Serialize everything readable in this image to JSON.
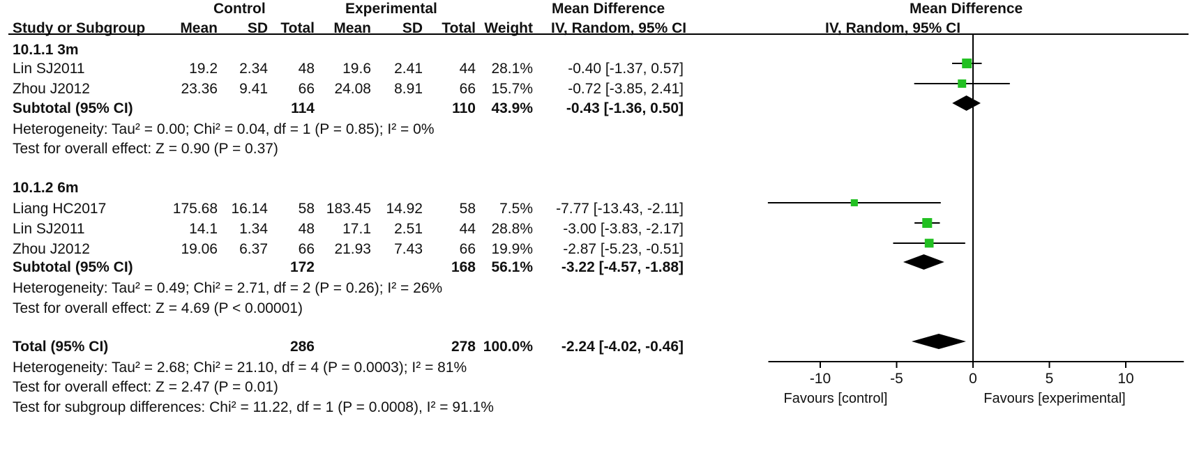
{
  "header": {
    "control": "Control",
    "experimental": "Experimental",
    "md_top": "Mean Difference",
    "plot_top": "Mean Difference",
    "study": "Study or Subgroup",
    "c_mean": "Mean",
    "c_sd": "SD",
    "c_total": "Total",
    "e_mean": "Mean",
    "e_sd": "SD",
    "e_total": "Total",
    "weight": "Weight",
    "md_sub": "IV, Random, 95% CI",
    "plot_sub": "IV, Random, 95% CI"
  },
  "groups": [
    {
      "title": "10.1.1 3m",
      "studies": [
        {
          "name": "Lin SJ2011",
          "c_mean": "19.2",
          "c_sd": "2.34",
          "c_total": "48",
          "e_mean": "19.6",
          "e_sd": "2.41",
          "e_total": "44",
          "weight": "28.1%",
          "ci": "-0.40 [-1.37, 0.57]"
        },
        {
          "name": "Zhou J2012",
          "c_mean": "23.36",
          "c_sd": "9.41",
          "c_total": "66",
          "e_mean": "24.08",
          "e_sd": "8.91",
          "e_total": "66",
          "weight": "15.7%",
          "ci": "-0.72 [-3.85, 2.41]"
        }
      ],
      "subtotal": {
        "label": "Subtotal (95% CI)",
        "c_total": "114",
        "e_total": "110",
        "weight": "43.9%",
        "ci": "-0.43 [-1.36, 0.50]"
      },
      "heterogeneity": "Heterogeneity: Tau² = 0.00; Chi² = 0.04, df = 1 (P = 0.85); I² = 0%",
      "overall": "Test for overall effect: Z = 0.90 (P = 0.37)"
    },
    {
      "title": "10.1.2 6m",
      "studies": [
        {
          "name": "Liang HC2017",
          "c_mean": "175.68",
          "c_sd": "16.14",
          "c_total": "58",
          "e_mean": "183.45",
          "e_sd": "14.92",
          "e_total": "58",
          "weight": "7.5%",
          "ci": "-7.77 [-13.43, -2.11]"
        },
        {
          "name": "Lin SJ2011",
          "c_mean": "14.1",
          "c_sd": "1.34",
          "c_total": "48",
          "e_mean": "17.1",
          "e_sd": "2.51",
          "e_total": "44",
          "weight": "28.8%",
          "ci": "-3.00 [-3.83, -2.17]"
        },
        {
          "name": "Zhou J2012",
          "c_mean": "19.06",
          "c_sd": "6.37",
          "c_total": "66",
          "e_mean": "21.93",
          "e_sd": "7.43",
          "e_total": "66",
          "weight": "19.9%",
          "ci": "-2.87 [-5.23, -0.51]"
        }
      ],
      "subtotal": {
        "label": "Subtotal (95% CI)",
        "c_total": "172",
        "e_total": "168",
        "weight": "56.1%",
        "ci": "-3.22 [-4.57, -1.88]"
      },
      "heterogeneity": "Heterogeneity: Tau² = 0.49; Chi² = 2.71, df = 2 (P = 0.26); I² = 26%",
      "overall": "Test for overall effect: Z = 4.69 (P < 0.00001)"
    }
  ],
  "total": {
    "label": "Total (95% CI)",
    "c_total": "286",
    "e_total": "278",
    "weight": "100.0%",
    "ci": "-2.24 [-4.02, -0.46]",
    "heterogeneity": "Heterogeneity: Tau² = 2.68; Chi² = 21.10, df = 4 (P = 0.0003); I² = 81%",
    "overall": "Test for overall effect: Z = 2.47 (P = 0.01)",
    "subgroup": "Test for subgroup differences: Chi² = 11.22, df = 1 (P = 0.0008), I² = 91.1%"
  },
  "axis": {
    "favours_left": "Favours [control]",
    "favours_right": "Favours [experimental]"
  },
  "colors": {
    "study_marker": "#22c022",
    "diamond": "#000000",
    "line": "#000000"
  },
  "chart_data": {
    "type": "forest",
    "title": "",
    "xlabel": "",
    "ylabel": "",
    "xlim": [
      -13.4,
      13.8
    ],
    "ticks": [
      -10,
      -5,
      0,
      5,
      10
    ],
    "null_line": 0,
    "studies": [
      {
        "group": "10.1.1 3m",
        "name": "Lin SJ2011",
        "md": -0.4,
        "lo": -1.37,
        "hi": 0.57,
        "weight": 28.1
      },
      {
        "group": "10.1.1 3m",
        "name": "Zhou J2012",
        "md": -0.72,
        "lo": -3.85,
        "hi": 2.41,
        "weight": 15.7
      },
      {
        "group": "10.1.2 6m",
        "name": "Liang HC2017",
        "md": -7.77,
        "lo": -13.43,
        "hi": -2.11,
        "weight": 7.5
      },
      {
        "group": "10.1.2 6m",
        "name": "Lin SJ2011",
        "md": -3.0,
        "lo": -3.83,
        "hi": -2.17,
        "weight": 28.8
      },
      {
        "group": "10.1.2 6m",
        "name": "Zhou J2012",
        "md": -2.87,
        "lo": -5.23,
        "hi": -0.51,
        "weight": 19.9
      }
    ],
    "diamonds": [
      {
        "label": "Subtotal 10.1.1 3m",
        "md": -0.43,
        "lo": -1.36,
        "hi": 0.5
      },
      {
        "label": "Subtotal 10.1.2 6m",
        "md": -3.22,
        "lo": -4.57,
        "hi": -1.88
      },
      {
        "label": "Total",
        "md": -2.24,
        "lo": -4.02,
        "hi": -0.46
      }
    ]
  }
}
